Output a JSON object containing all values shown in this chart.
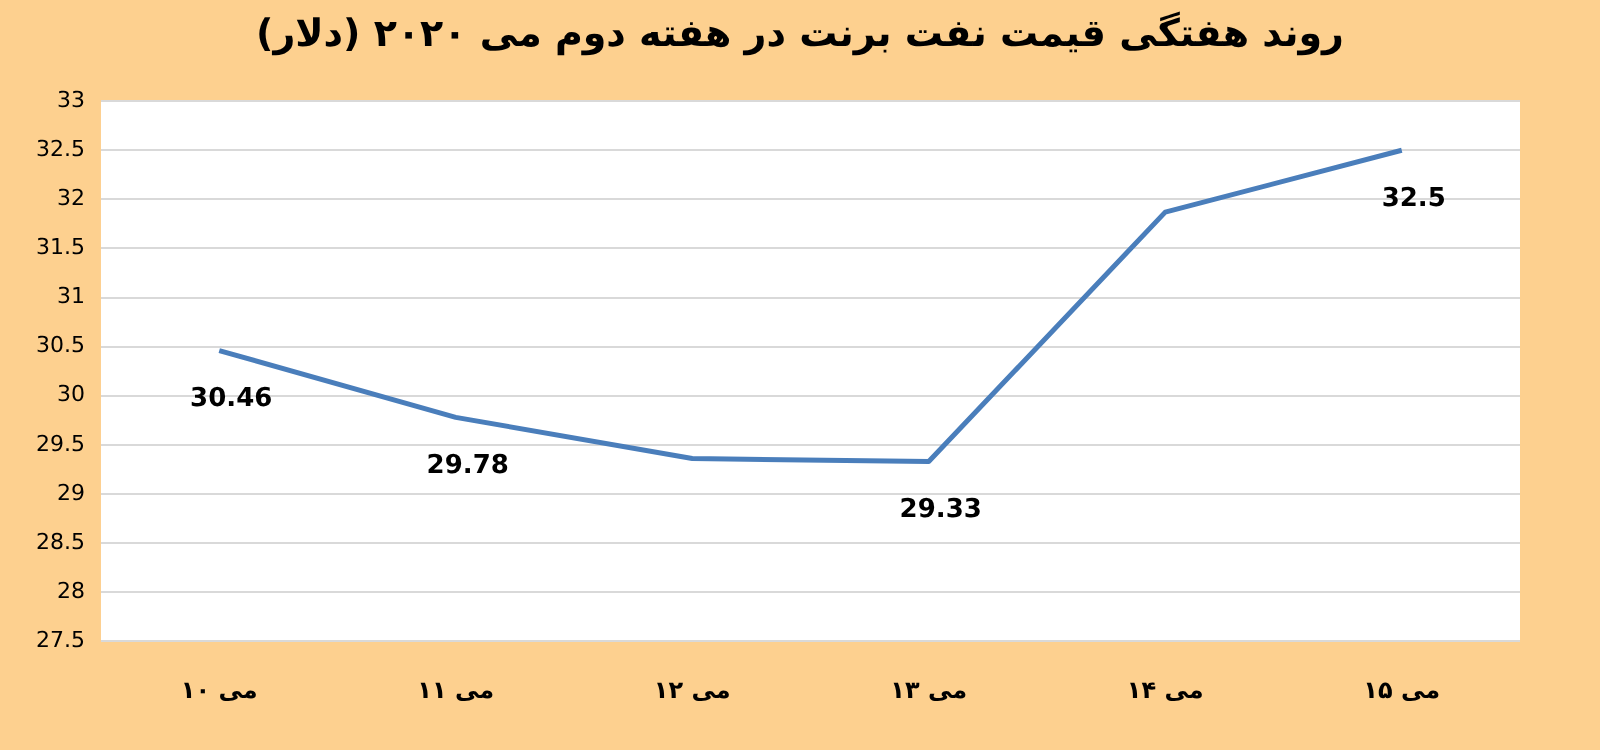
{
  "chart_data": {
    "type": "line",
    "title": "روند هفتگی قیمت نفت برنت در هفته دوم می ۲۰۲۰ (دلار)",
    "categories": [
      "۱۰ می",
      "۱۱ می",
      "۱۲ می",
      "۱۳ می",
      "۱۴ می",
      "۱۵ می"
    ],
    "series": [
      {
        "color": "#4a7ebb",
        "values": [
          30.46,
          29.78,
          29.36,
          29.33,
          31.87,
          32.5
        ],
        "value_labels": [
          "30.46",
          "29.78",
          null,
          "29.33",
          null,
          "32.5"
        ]
      }
    ],
    "ylim": [
      27.5,
      33
    ],
    "yticks": [
      27.5,
      28,
      28.5,
      29,
      29.5,
      30,
      30.5,
      31,
      31.5,
      32,
      32.5,
      33
    ],
    "grid": "y",
    "legend": false,
    "marker": "none",
    "line_style": "solid"
  }
}
